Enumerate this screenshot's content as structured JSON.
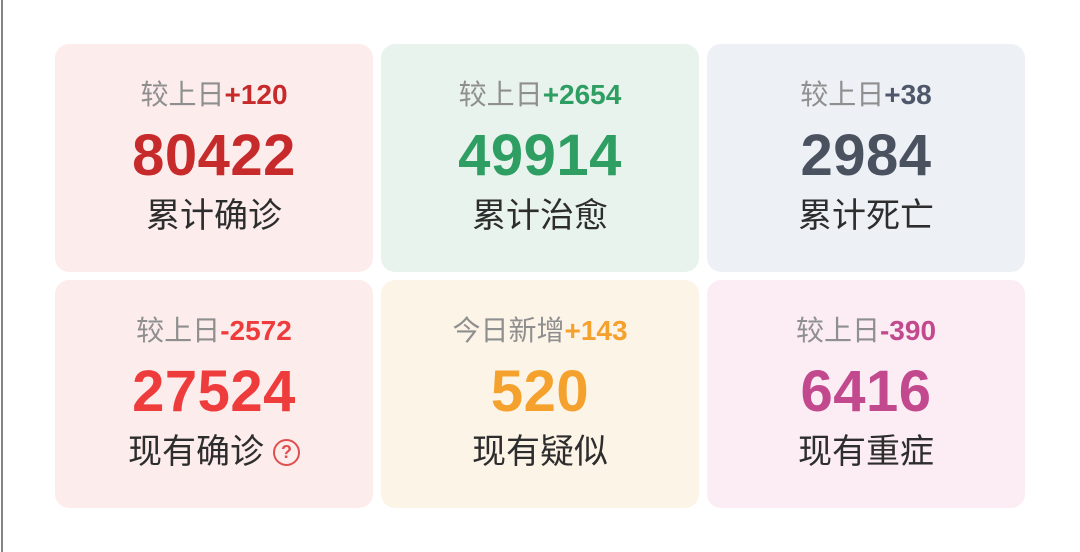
{
  "screen": {
    "background": "#ffffff",
    "edge_line_color": "#848484"
  },
  "text_colors": {
    "delta_prefix": "#8f8f8f",
    "label": "#2d2d2d"
  },
  "help_icon": {
    "symbol": "?",
    "color": "#e04f4f"
  },
  "cards": [
    {
      "id": "cumulative-confirmed",
      "delta_prefix": "较上日",
      "delta_value": "+120",
      "value": "80422",
      "label": "累计确诊",
      "bg": "#fcecec",
      "accent": "#c62a2a",
      "delta_color": "#c62a2a"
    },
    {
      "id": "cumulative-cured",
      "delta_prefix": "较上日",
      "delta_value": "+2654",
      "value": "49914",
      "label": "累计治愈",
      "bg": "#e9f3ee",
      "accent": "#2e9e62",
      "delta_color": "#2e9e62"
    },
    {
      "id": "cumulative-deaths",
      "delta_prefix": "较上日",
      "delta_value": "+38",
      "value": "2984",
      "label": "累计死亡",
      "bg": "#edf0f5",
      "accent": "#4a5260",
      "delta_color": "#4e586a"
    },
    {
      "id": "current-confirmed",
      "delta_prefix": "较上日",
      "delta_value": "-2572",
      "value": "27524",
      "label": "现有确诊",
      "bg": "#fdecec",
      "accent": "#ee3b3b",
      "delta_color": "#ee3b3b"
    },
    {
      "id": "current-suspected",
      "delta_prefix": "今日新增",
      "delta_value": "+143",
      "value": "520",
      "label": "现有疑似",
      "bg": "#fdf4e8",
      "accent": "#f5a12d",
      "delta_color": "#f5a12d"
    },
    {
      "id": "current-severe",
      "delta_prefix": "较上日",
      "delta_value": "-390",
      "value": "6416",
      "label": "现有重症",
      "bg": "#fbedf3",
      "accent": "#c3498e",
      "delta_color": "#c3498e"
    }
  ]
}
